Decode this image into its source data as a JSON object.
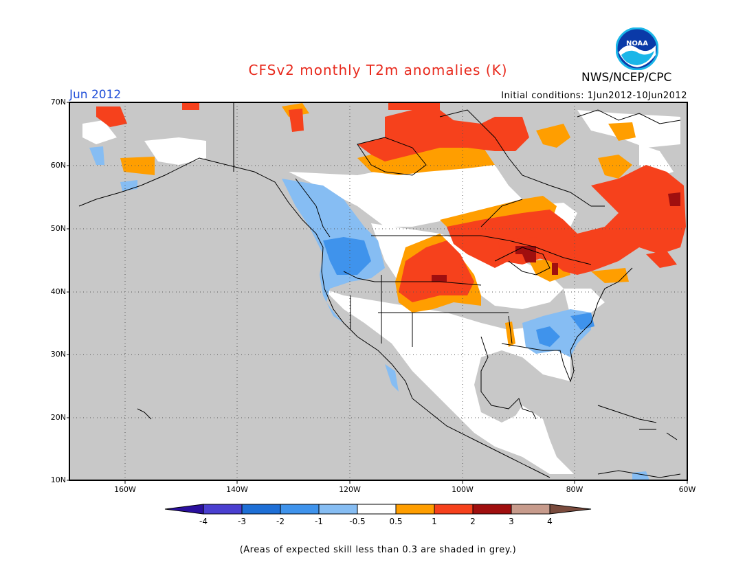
{
  "header": {
    "title": "CFSv2 monthly T2m anomalies (K)",
    "agency": "NWS/NCEP/CPC",
    "month": "Jun 2012",
    "initial_conditions": "Initial conditions: 1Jun2012-10Jun2012",
    "logo_text": "NOAA"
  },
  "map": {
    "projection": "lat-lon",
    "lon_range": [
      -170,
      -60
    ],
    "lat_range": [
      10,
      70
    ],
    "gridlines": "dotted",
    "background_color": "#c8c8c8",
    "lat_labels": [
      "70N",
      "60N",
      "50N",
      "40N",
      "30N",
      "20N",
      "10N"
    ],
    "lon_labels": [
      "160W",
      "140W",
      "120W",
      "100W",
      "80W",
      "60W"
    ]
  },
  "colorbar": {
    "ticks": [
      "-4",
      "-3",
      "-2",
      "-1",
      "-0.5",
      "0.5",
      "1",
      "2",
      "3",
      "4"
    ],
    "colors": [
      "#2a0f9e",
      "#4a3fd0",
      "#1e6fd6",
      "#3f93ec",
      "#86bdf3",
      "#ffffff",
      "#ff9e00",
      "#f6411c",
      "#a00f0f",
      "#c79b8c",
      "#7a4b3d"
    ]
  },
  "footnote": "(Areas of expected skill less than 0.3 are shaded in grey.)"
}
